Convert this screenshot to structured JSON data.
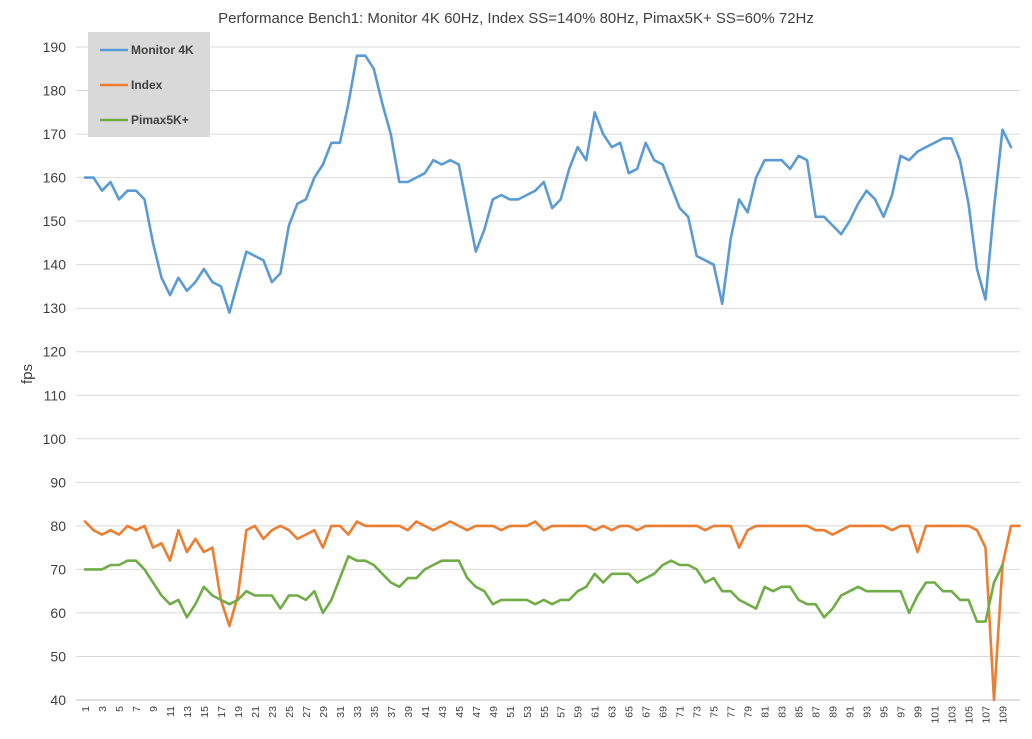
{
  "chart_data": {
    "type": "line",
    "title": "Performance Bench1: Monitor 4K 60Hz, Index SS=140% 80Hz, Pimax5K+ SS=60% 72Hz",
    "xlabel": "",
    "ylabel": "fps",
    "ylim": [
      40,
      190
    ],
    "yticks": [
      40,
      50,
      60,
      70,
      80,
      90,
      100,
      110,
      120,
      130,
      140,
      150,
      160,
      170,
      180,
      190
    ],
    "xlim": [
      1,
      110
    ],
    "xticks": [
      1,
      3,
      5,
      7,
      9,
      11,
      13,
      15,
      17,
      19,
      21,
      23,
      25,
      27,
      29,
      31,
      33,
      35,
      37,
      39,
      41,
      43,
      45,
      47,
      49,
      51,
      53,
      55,
      57,
      59,
      61,
      63,
      65,
      67,
      69,
      71,
      73,
      75,
      77,
      79,
      81,
      83,
      85,
      87,
      89,
      91,
      93,
      95,
      97,
      99,
      101,
      103,
      105,
      107,
      109
    ],
    "grid": "horizontal",
    "legend_position": "top-left",
    "series": [
      {
        "name": "Monitor 4K",
        "color": "#5b9bd5",
        "values": [
          160,
          160,
          157,
          159,
          155,
          157,
          157,
          155,
          145,
          137,
          133,
          137,
          134,
          136,
          139,
          136,
          135,
          129,
          136,
          143,
          142,
          141,
          136,
          138,
          149,
          154,
          155,
          160,
          163,
          168,
          168,
          177,
          188,
          188,
          185,
          177,
          170,
          159,
          159,
          160,
          161,
          164,
          163,
          164,
          163,
          153,
          143,
          148,
          155,
          156,
          155,
          155,
          156,
          157,
          159,
          153,
          155,
          162,
          167,
          164,
          175,
          170,
          167,
          168,
          161,
          162,
          168,
          164,
          163,
          158,
          153,
          151,
          142,
          141,
          140,
          131,
          146,
          155,
          152,
          160,
          164,
          164,
          164,
          162,
          165,
          164,
          151,
          151,
          149,
          147,
          150,
          154,
          157,
          155,
          151,
          156,
          165,
          164,
          166,
          167,
          168,
          169,
          169,
          164,
          154,
          139,
          132,
          153,
          171,
          167
        ]
      },
      {
        "name": "Index",
        "color": "#ed7d31",
        "values": [
          81,
          79,
          78,
          79,
          78,
          80,
          79,
          80,
          75,
          76,
          72,
          79,
          74,
          77,
          74,
          75,
          63,
          57,
          64,
          79,
          80,
          77,
          79,
          80,
          79,
          77,
          78,
          79,
          75,
          80,
          80,
          78,
          81,
          80,
          80,
          80,
          80,
          80,
          79,
          81,
          80,
          79,
          80,
          81,
          80,
          79,
          80,
          80,
          80,
          79,
          80,
          80,
          80,
          81,
          79,
          80,
          80,
          80,
          80,
          80,
          79,
          80,
          79,
          80,
          80,
          79,
          80,
          80,
          80,
          80,
          80,
          80,
          80,
          79,
          80,
          80,
          80,
          75,
          79,
          80,
          80,
          80,
          80,
          80,
          80,
          80,
          79,
          79,
          78,
          79,
          80,
          80,
          80,
          80,
          80,
          79,
          80,
          80,
          74,
          80,
          80,
          80,
          80,
          80,
          80,
          79,
          75,
          40,
          71,
          80,
          80
        ]
      },
      {
        "name": "Pimax5K+",
        "color": "#70ad47",
        "values": [
          70,
          70,
          70,
          71,
          71,
          72,
          72,
          70,
          67,
          64,
          62,
          63,
          59,
          62,
          66,
          64,
          63,
          62,
          63,
          65,
          64,
          64,
          64,
          61,
          64,
          64,
          63,
          65,
          60,
          63,
          68,
          73,
          72,
          72,
          71,
          69,
          67,
          66,
          68,
          68,
          70,
          71,
          72,
          72,
          72,
          68,
          66,
          65,
          62,
          63,
          63,
          63,
          63,
          62,
          63,
          62,
          63,
          63,
          65,
          66,
          69,
          67,
          69,
          69,
          69,
          67,
          68,
          69,
          71,
          72,
          71,
          71,
          70,
          67,
          68,
          65,
          65,
          63,
          62,
          61,
          66,
          65,
          66,
          66,
          63,
          62,
          62,
          59,
          61,
          64,
          65,
          66,
          65,
          65,
          65,
          65,
          65,
          60,
          64,
          67,
          67,
          65,
          65,
          63,
          63,
          58,
          58,
          67,
          71
        ]
      }
    ]
  }
}
